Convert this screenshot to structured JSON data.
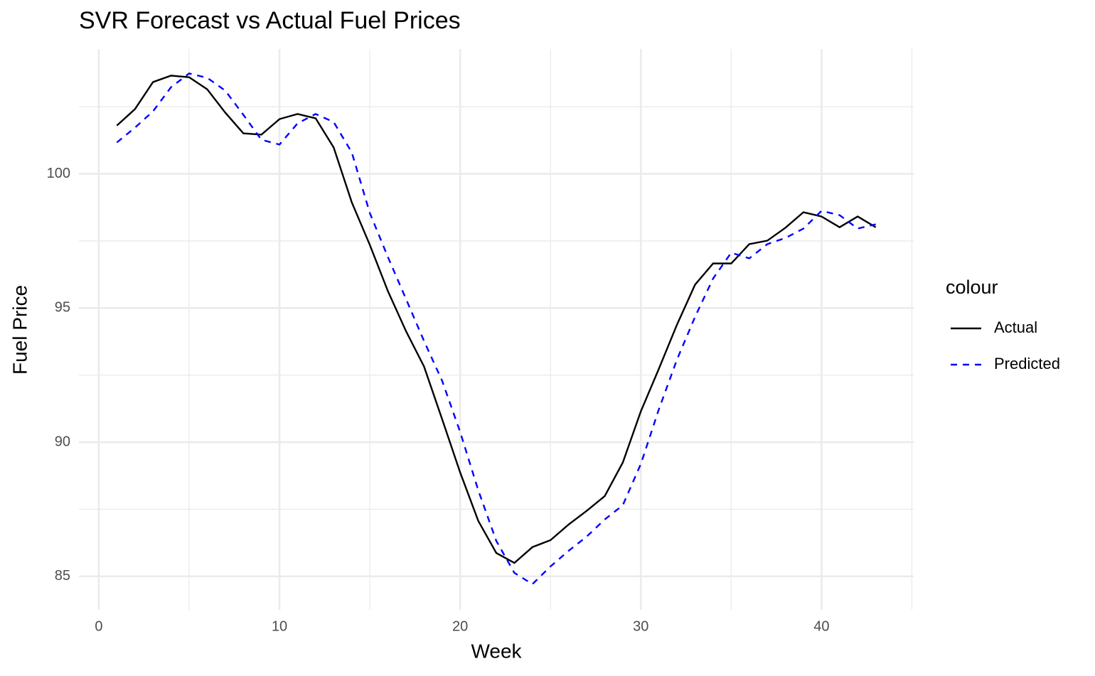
{
  "chart_data": {
    "type": "line",
    "title": "SVR Forecast vs Actual Fuel Prices",
    "x_label": "Week",
    "y_label": "Fuel Price",
    "legend_title": "colour",
    "legend_position": "right",
    "grid": true,
    "x": [
      1,
      2,
      3,
      4,
      5,
      6,
      7,
      8,
      9,
      10,
      11,
      12,
      13,
      14,
      15,
      16,
      17,
      18,
      19,
      20,
      21,
      22,
      23,
      24,
      25,
      26,
      27,
      28,
      29,
      30,
      31,
      32,
      33,
      34,
      35,
      36,
      37,
      38,
      39,
      40,
      41,
      42,
      43
    ],
    "series": [
      {
        "name": "Actual",
        "color": "#000000",
        "dash": "solid",
        "values": [
          101.8,
          102.41,
          103.42,
          103.66,
          103.6,
          103.15,
          102.28,
          101.51,
          101.46,
          102.04,
          102.23,
          102.07,
          100.98,
          98.94,
          97.35,
          95.63,
          94.14,
          92.82,
          90.86,
          88.87,
          87.07,
          85.87,
          85.5,
          86.09,
          86.35,
          86.93,
          87.44,
          87.99,
          89.24,
          91.15,
          92.74,
          94.38,
          95.87,
          96.66,
          96.66,
          97.38,
          97.51,
          97.99,
          98.57,
          98.41,
          98.01,
          98.41,
          98.01
        ]
      },
      {
        "name": "Predicted",
        "color": "#0000ff",
        "dash": "dashed",
        "values": [
          101.17,
          101.72,
          102.33,
          103.23,
          103.74,
          103.58,
          103.1,
          102.2,
          101.27,
          101.09,
          101.88,
          102.23,
          101.93,
          100.8,
          98.54,
          96.9,
          95.34,
          93.77,
          92.29,
          90.38,
          88.21,
          86.32,
          85.13,
          84.71,
          85.37,
          85.95,
          86.48,
          87.12,
          87.65,
          89.19,
          91.23,
          93.08,
          94.67,
          96.1,
          97.06,
          96.85,
          97.38,
          97.61,
          97.96,
          98.62,
          98.46,
          97.96,
          98.12
        ]
      }
    ],
    "xlim": [
      -1.1,
      45.1
    ],
    "xticks": [
      0,
      10,
      20,
      30,
      40
    ],
    "x_minor_ticks": [
      5,
      15,
      25,
      35,
      45
    ],
    "ylim": [
      83.75,
      104.65
    ],
    "yticks": [
      85,
      90,
      95,
      100
    ],
    "y_minor_ticks": [
      87.5,
      92.5,
      97.5,
      102.5
    ]
  }
}
